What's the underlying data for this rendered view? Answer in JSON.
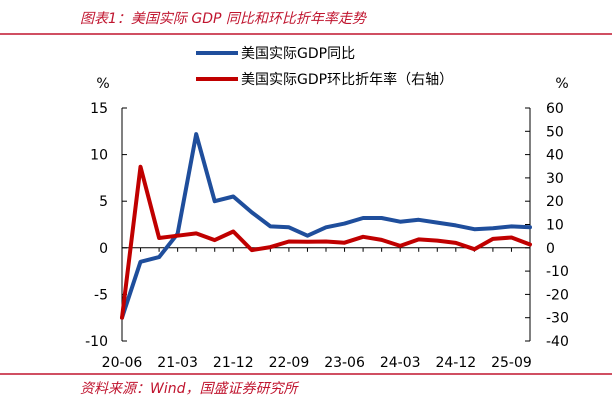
{
  "figure": {
    "title": "图表1：美国实际 GDP 同比和环比折年率走势",
    "source": "资料来源：Wind，国盛证券研究所"
  },
  "colors": {
    "accent": "#c0152f",
    "series_yoy": "#1f4e9c",
    "series_qoq": "#c00000"
  },
  "chart_data": {
    "type": "line",
    "x": [
      "20-06",
      "20-09",
      "20-12",
      "21-03",
      "21-06",
      "21-09",
      "21-12",
      "22-03",
      "22-06",
      "22-09",
      "22-12",
      "23-03",
      "23-06",
      "23-09",
      "23-12",
      "24-03",
      "24-06",
      "24-09",
      "24-12",
      "25-03",
      "25-06",
      "25-09",
      "25-12"
    ],
    "x_tick_labels": [
      "20-06",
      "21-03",
      "21-12",
      "22-09",
      "23-06",
      "24-03",
      "24-12",
      "25-09"
    ],
    "series": [
      {
        "name": "美国实际GDP同比",
        "axis": "left",
        "color": "#1f4e9c",
        "values": [
          -7.5,
          -1.5,
          -1.0,
          1.5,
          12.2,
          5.0,
          5.5,
          3.8,
          2.3,
          2.2,
          1.3,
          2.2,
          2.6,
          3.2,
          3.2,
          2.8,
          3.0,
          2.7,
          2.4,
          2.0,
          2.1,
          2.3,
          2.2
        ]
      },
      {
        "name": "美国实际GDP环比折年率（右轴）",
        "axis": "right",
        "color": "#c00000",
        "values": [
          -30,
          34.8,
          4.2,
          5.2,
          6.2,
          3.3,
          7.0,
          -1.0,
          0.3,
          2.7,
          2.6,
          2.7,
          2.2,
          4.7,
          3.4,
          0.8,
          3.6,
          3.1,
          2.1,
          -0.6,
          3.8,
          4.4,
          1.4
        ]
      }
    ],
    "left_axis": {
      "unit": "%",
      "min": -10,
      "max": 15,
      "ticks": [
        15,
        10,
        5,
        0,
        -5,
        -10
      ]
    },
    "right_axis": {
      "unit": "%",
      "min": -40,
      "max": 60,
      "ticks": [
        60,
        50,
        40,
        30,
        20,
        10,
        0,
        -10,
        -20,
        -30,
        -40
      ]
    },
    "grid": false,
    "legend_position": "top-center"
  }
}
